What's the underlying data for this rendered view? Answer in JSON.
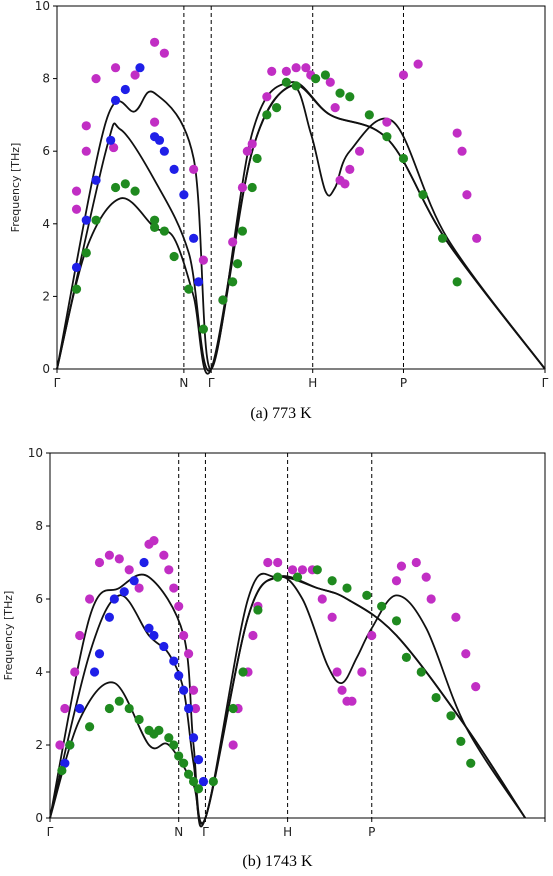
{
  "chart_data": [
    {
      "type": "scatter",
      "caption": "(a) 773 K",
      "ylabel": "Frequency [THz]",
      "ylim": [
        0,
        10
      ],
      "yticks": [
        "0",
        "2",
        "4",
        "6",
        "8",
        "10"
      ],
      "x_ticks": [
        "Γ",
        "N",
        "Γ",
        "H",
        "P",
        "Γ"
      ],
      "x_range": [
        0,
        5
      ],
      "grid": false,
      "colors": {
        "curve": "#111111",
        "magenta": "#c12ec4",
        "blue": "#1f1fe8",
        "green": "#1f8a1f"
      },
      "curves": [
        [
          [
            0,
            0
          ],
          [
            0.5,
            6.8
          ],
          [
            0.8,
            7.1
          ],
          [
            1.0,
            7.6
          ],
          [
            1.4,
            5.8
          ],
          [
            1.58,
            0
          ],
          [
            2.0,
            6.5
          ],
          [
            2.4,
            7.9
          ],
          [
            2.8,
            7.0
          ],
          [
            3.4,
            6.3
          ],
          [
            4.0,
            3.5
          ],
          [
            5.0,
            0
          ]
        ],
        [
          [
            0,
            0
          ],
          [
            0.5,
            6.0
          ],
          [
            0.65,
            6.6
          ],
          [
            1.0,
            5.2
          ],
          [
            1.35,
            3.2
          ],
          [
            1.58,
            0
          ],
          [
            2.0,
            6.0
          ],
          [
            2.4,
            7.8
          ],
          [
            2.6,
            6.5
          ],
          [
            2.75,
            4.9
          ],
          [
            2.85,
            5.0
          ],
          [
            3.0,
            6.0
          ],
          [
            3.45,
            6.8
          ],
          [
            4.0,
            3.6
          ],
          [
            5.0,
            0
          ]
        ],
        [
          [
            0,
            0
          ],
          [
            0.3,
            3.3
          ],
          [
            0.65,
            4.7
          ],
          [
            1.0,
            3.9
          ],
          [
            1.2,
            3.6
          ],
          [
            1.4,
            2.0
          ],
          [
            1.58,
            0
          ],
          [
            2.0,
            6.0
          ],
          [
            2.4,
            7.8
          ],
          [
            2.8,
            7.0
          ],
          [
            3.4,
            6.3
          ],
          [
            4.0,
            3.5
          ],
          [
            5.0,
            0
          ]
        ]
      ],
      "points": {
        "magenta": [
          [
            0.2,
            4.4
          ],
          [
            0.2,
            4.9
          ],
          [
            0.3,
            6.0
          ],
          [
            0.3,
            6.7
          ],
          [
            0.4,
            8.0
          ],
          [
            0.6,
            8.3
          ],
          [
            0.58,
            6.1
          ],
          [
            0.8,
            8.1
          ],
          [
            1.0,
            9.0
          ],
          [
            1.0,
            6.8
          ],
          [
            1.1,
            8.7
          ],
          [
            1.4,
            5.5
          ],
          [
            1.5,
            3.0
          ],
          [
            1.7,
            1.9
          ],
          [
            1.8,
            3.5
          ],
          [
            1.9,
            5.0
          ],
          [
            1.95,
            6.0
          ],
          [
            2.0,
            6.2
          ],
          [
            2.15,
            7.5
          ],
          [
            2.2,
            8.2
          ],
          [
            2.35,
            8.2
          ],
          [
            2.45,
            8.3
          ],
          [
            2.55,
            8.3
          ],
          [
            2.6,
            8.1
          ],
          [
            2.8,
            7.9
          ],
          [
            2.85,
            7.2
          ],
          [
            2.9,
            5.2
          ],
          [
            2.95,
            5.1
          ],
          [
            3.0,
            5.5
          ],
          [
            3.1,
            6.0
          ],
          [
            3.38,
            6.8
          ],
          [
            3.55,
            8.1
          ],
          [
            3.7,
            8.4
          ],
          [
            4.1,
            6.5
          ],
          [
            4.15,
            6.0
          ],
          [
            4.2,
            4.8
          ],
          [
            4.3,
            3.6
          ]
        ],
        "blue": [
          [
            0.2,
            2.8
          ],
          [
            0.3,
            4.1
          ],
          [
            0.4,
            5.2
          ],
          [
            0.55,
            6.3
          ],
          [
            0.6,
            7.4
          ],
          [
            0.7,
            7.7
          ],
          [
            0.85,
            8.3
          ],
          [
            1.0,
            6.4
          ],
          [
            1.05,
            6.3
          ],
          [
            1.1,
            6.0
          ],
          [
            1.2,
            5.5
          ],
          [
            1.3,
            4.8
          ],
          [
            1.4,
            3.6
          ],
          [
            1.45,
            2.4
          ]
        ],
        "green": [
          [
            0.2,
            2.2
          ],
          [
            0.3,
            3.2
          ],
          [
            0.4,
            4.1
          ],
          [
            0.6,
            5.0
          ],
          [
            0.7,
            5.1
          ],
          [
            0.8,
            4.9
          ],
          [
            1.0,
            4.1
          ],
          [
            1.0,
            3.9
          ],
          [
            1.1,
            3.8
          ],
          [
            1.2,
            3.1
          ],
          [
            1.35,
            2.2
          ],
          [
            1.5,
            1.1
          ],
          [
            1.7,
            1.9
          ],
          [
            1.8,
            2.4
          ],
          [
            1.85,
            2.9
          ],
          [
            1.9,
            3.8
          ],
          [
            2.0,
            5.0
          ],
          [
            2.05,
            5.8
          ],
          [
            2.15,
            7.0
          ],
          [
            2.25,
            7.2
          ],
          [
            2.35,
            7.9
          ],
          [
            2.45,
            7.8
          ],
          [
            2.65,
            8.0
          ],
          [
            2.75,
            8.1
          ],
          [
            2.9,
            7.6
          ],
          [
            3.0,
            7.5
          ],
          [
            3.2,
            7.0
          ],
          [
            3.38,
            6.4
          ],
          [
            3.55,
            5.8
          ],
          [
            3.75,
            4.8
          ],
          [
            3.95,
            3.6
          ],
          [
            4.1,
            2.4
          ]
        ]
      }
    },
    {
      "type": "scatter",
      "caption": "(b) 1743 K",
      "ylabel": "Frequency [THz]",
      "ylim": [
        0,
        10
      ],
      "yticks": [
        "0",
        "2",
        "4",
        "6",
        "8",
        "10"
      ],
      "x_ticks": [
        "Γ",
        "N",
        "Γ",
        "H",
        "P",
        ""
      ],
      "x_range": [
        0,
        5
      ],
      "grid": false,
      "colors": {
        "curve": "#111111",
        "magenta": "#c12ec4",
        "blue": "#1f1fe8",
        "green": "#1f8a1f"
      },
      "curves": [
        [
          [
            0,
            0
          ],
          [
            0.4,
            5.5
          ],
          [
            0.7,
            6.3
          ],
          [
            1.0,
            6.6
          ],
          [
            1.35,
            5.0
          ],
          [
            1.45,
            2.0
          ],
          [
            1.57,
            0
          ],
          [
            2.0,
            6.0
          ],
          [
            2.3,
            6.6
          ],
          [
            2.7,
            6.3
          ],
          [
            3.0,
            6.0
          ],
          [
            3.5,
            5.0
          ],
          [
            4.2,
            2.5
          ],
          [
            4.8,
            0
          ]
        ],
        [
          [
            0,
            0
          ],
          [
            0.4,
            4.5
          ],
          [
            0.7,
            6.1
          ],
          [
            1.0,
            5.0
          ],
          [
            1.2,
            4.5
          ],
          [
            1.35,
            3.5
          ],
          [
            1.45,
            1.5
          ],
          [
            1.57,
            0
          ],
          [
            2.0,
            5.5
          ],
          [
            2.3,
            6.6
          ],
          [
            2.55,
            6.0
          ],
          [
            2.8,
            4.2
          ],
          [
            2.95,
            3.7
          ],
          [
            3.1,
            4.4
          ],
          [
            3.25,
            5.2
          ],
          [
            3.5,
            6.1
          ],
          [
            3.8,
            5.2
          ],
          [
            4.2,
            2.5
          ],
          [
            4.8,
            0
          ]
        ],
        [
          [
            0,
            0
          ],
          [
            0.3,
            2.7
          ],
          [
            0.65,
            3.7
          ],
          [
            1.0,
            2.0
          ],
          [
            1.2,
            2.0
          ],
          [
            1.45,
            0.9
          ],
          [
            1.57,
            0
          ],
          [
            2.0,
            5.5
          ],
          [
            2.3,
            6.6
          ],
          [
            2.7,
            6.3
          ],
          [
            3.0,
            6.0
          ],
          [
            3.5,
            5.0
          ],
          [
            4.2,
            2.5
          ],
          [
            4.8,
            0
          ]
        ]
      ],
      "points": {
        "magenta": [
          [
            0.1,
            2.0
          ],
          [
            0.15,
            3.0
          ],
          [
            0.25,
            4.0
          ],
          [
            0.3,
            5.0
          ],
          [
            0.4,
            6.0
          ],
          [
            0.5,
            7.0
          ],
          [
            0.6,
            7.2
          ],
          [
            0.7,
            7.1
          ],
          [
            0.8,
            6.8
          ],
          [
            0.9,
            6.3
          ],
          [
            1.0,
            7.5
          ],
          [
            1.05,
            7.6
          ],
          [
            1.15,
            7.2
          ],
          [
            1.2,
            6.8
          ],
          [
            1.25,
            6.3
          ],
          [
            1.3,
            5.8
          ],
          [
            1.35,
            5.0
          ],
          [
            1.4,
            4.5
          ],
          [
            1.45,
            3.5
          ],
          [
            1.47,
            3.0
          ],
          [
            1.85,
            2.0
          ],
          [
            1.9,
            3.0
          ],
          [
            2.0,
            4.0
          ],
          [
            2.05,
            5.0
          ],
          [
            2.1,
            5.8
          ],
          [
            2.2,
            7.0
          ],
          [
            2.3,
            7.0
          ],
          [
            2.45,
            6.8
          ],
          [
            2.55,
            6.8
          ],
          [
            2.65,
            6.8
          ],
          [
            2.75,
            6.0
          ],
          [
            2.85,
            5.5
          ],
          [
            2.9,
            4.0
          ],
          [
            2.95,
            3.5
          ],
          [
            3.0,
            3.2
          ],
          [
            3.05,
            3.2
          ],
          [
            3.15,
            4.0
          ],
          [
            3.25,
            5.0
          ],
          [
            3.5,
            6.5
          ],
          [
            3.55,
            6.9
          ],
          [
            3.7,
            7.0
          ],
          [
            3.8,
            6.6
          ],
          [
            3.85,
            6.0
          ],
          [
            4.1,
            5.5
          ],
          [
            4.2,
            4.5
          ],
          [
            4.3,
            3.6
          ]
        ],
        "blue": [
          [
            0.15,
            1.5
          ],
          [
            0.2,
            2.0
          ],
          [
            0.3,
            3.0
          ],
          [
            0.45,
            4.0
          ],
          [
            0.5,
            4.5
          ],
          [
            0.6,
            5.5
          ],
          [
            0.65,
            6.0
          ],
          [
            0.75,
            6.2
          ],
          [
            0.85,
            6.5
          ],
          [
            0.95,
            7.0
          ],
          [
            1.0,
            5.2
          ],
          [
            1.05,
            5.0
          ],
          [
            1.15,
            4.7
          ],
          [
            1.25,
            4.3
          ],
          [
            1.3,
            3.9
          ],
          [
            1.35,
            3.5
          ],
          [
            1.4,
            3.0
          ],
          [
            1.45,
            2.2
          ],
          [
            1.5,
            1.6
          ],
          [
            1.55,
            1.0
          ]
        ],
        "green": [
          [
            0.12,
            1.3
          ],
          [
            0.2,
            2.0
          ],
          [
            0.4,
            2.5
          ],
          [
            0.6,
            3.0
          ],
          [
            0.7,
            3.2
          ],
          [
            0.8,
            3.0
          ],
          [
            0.9,
            2.7
          ],
          [
            1.0,
            2.4
          ],
          [
            1.05,
            2.3
          ],
          [
            1.1,
            2.4
          ],
          [
            1.2,
            2.2
          ],
          [
            1.25,
            2.0
          ],
          [
            1.3,
            1.7
          ],
          [
            1.35,
            1.5
          ],
          [
            1.4,
            1.2
          ],
          [
            1.45,
            1.0
          ],
          [
            1.5,
            0.8
          ],
          [
            1.65,
            1.0
          ],
          [
            1.85,
            3.0
          ],
          [
            1.95,
            4.0
          ],
          [
            2.1,
            5.7
          ],
          [
            2.3,
            6.6
          ],
          [
            2.5,
            6.6
          ],
          [
            2.7,
            6.8
          ],
          [
            2.85,
            6.5
          ],
          [
            3.0,
            6.3
          ],
          [
            3.2,
            6.1
          ],
          [
            3.35,
            5.8
          ],
          [
            3.5,
            5.4
          ],
          [
            3.6,
            4.4
          ],
          [
            3.75,
            4.0
          ],
          [
            3.9,
            3.3
          ],
          [
            4.05,
            2.8
          ],
          [
            4.15,
            2.1
          ],
          [
            4.25,
            1.5
          ]
        ]
      }
    }
  ]
}
